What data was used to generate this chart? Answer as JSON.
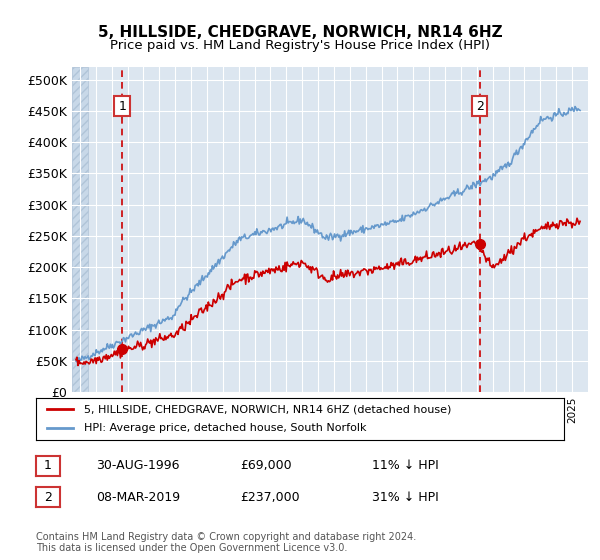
{
  "title": "5, HILLSIDE, CHEDGRAVE, NORWICH, NR14 6HZ",
  "subtitle": "Price paid vs. HM Land Registry's House Price Index (HPI)",
  "bg_color": "#dce6f0",
  "grid_color": "#ffffff",
  "y_ticks": [
    0,
    50000,
    100000,
    150000,
    200000,
    250000,
    300000,
    350000,
    400000,
    450000,
    500000
  ],
  "y_tick_labels": [
    "£0",
    "£50K",
    "£100K",
    "£150K",
    "£200K",
    "£250K",
    "£300K",
    "£350K",
    "£400K",
    "£450K",
    "£500K"
  ],
  "ylim": [
    0,
    520000
  ],
  "xlim_start": 1993.5,
  "xlim_end": 2026.0,
  "sale1_date": 1996.66,
  "sale1_price": 69000,
  "sale2_date": 2019.18,
  "sale2_price": 237000,
  "legend_line1": "5, HILLSIDE, CHEDGRAVE, NORWICH, NR14 6HZ (detached house)",
  "legend_line2": "HPI: Average price, detached house, South Norfolk",
  "annotation1_date": "30-AUG-1996",
  "annotation1_price": "£69,000",
  "annotation1_hpi": "11% ↓ HPI",
  "annotation2_date": "08-MAR-2019",
  "annotation2_price": "£237,000",
  "annotation2_hpi": "31% ↓ HPI",
  "footer": "Contains HM Land Registry data © Crown copyright and database right 2024.\nThis data is licensed under the Open Government Licence v3.0.",
  "red_line_color": "#cc0000",
  "blue_line_color": "#6699cc",
  "sale_dot_color": "#cc0000",
  "dashed_line_color": "#cc0000",
  "label_box_color": "#cc3333"
}
